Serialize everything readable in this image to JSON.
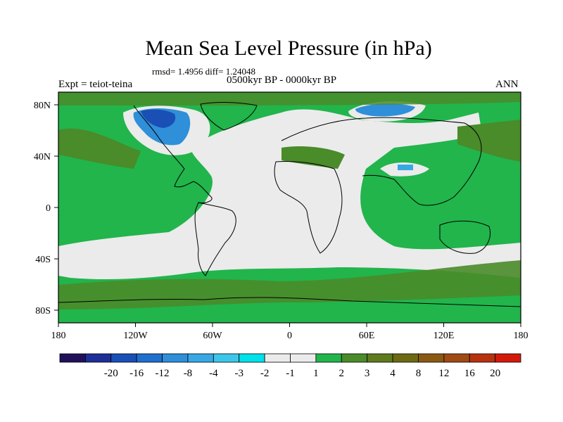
{
  "title": "Mean Sea Level Pressure (in hPa)",
  "stats": "rmsd= 1.4956 diff= 1.24048",
  "left_label": "Expt = teiot-teina",
  "center_label": "0500kyr BP - 0000kyr BP",
  "right_label": "ANN",
  "lat_ticks": [
    "80N",
    "40N",
    "0",
    "40S",
    "80S"
  ],
  "lon_ticks": [
    "180",
    "120W",
    "60W",
    "0",
    "60E",
    "120E",
    "180"
  ],
  "colorbar": {
    "colors": [
      "#20105a",
      "#1f2f98",
      "#1a4fb6",
      "#1f6fcc",
      "#2f8fd9",
      "#37a8e3",
      "#3ec6ea",
      "#00e1ea",
      "#ebebeb",
      "#ebebeb",
      "#21b54c",
      "#4a8b2a",
      "#5f7b1d",
      "#6e6a14",
      "#8a5a14",
      "#a04a14",
      "#b83210",
      "#d21a0a"
    ],
    "labels": [
      "-20",
      "-16",
      "-12",
      "-8",
      "-4",
      "-3",
      "-2",
      "-1",
      "1",
      "2",
      "3",
      "4",
      "8",
      "12",
      "16",
      "20"
    ]
  }
}
